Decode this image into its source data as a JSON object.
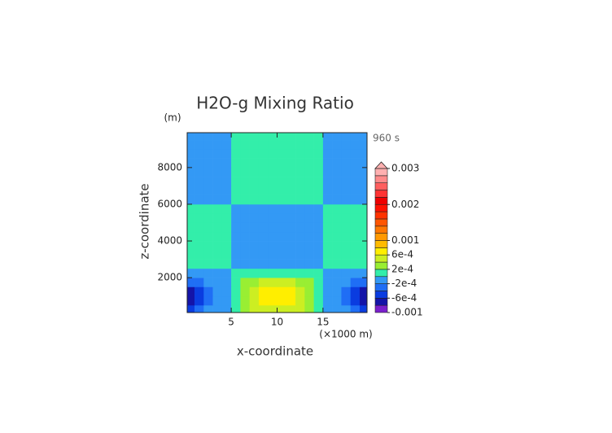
{
  "chart_data": {
    "type": "contour",
    "title": "H2O-g Mixing Ratio",
    "x_label": "x-coordinate",
    "y_label": "z-coordinate",
    "y_unit": "(m)",
    "x_unit": "(×1000 m)",
    "time_label": "960 s",
    "xlim": [
      0.2,
      19.8
    ],
    "ylim": [
      100,
      9900
    ],
    "xticks": [
      5,
      10,
      15
    ],
    "yticks": [
      2000,
      4000,
      6000,
      8000
    ],
    "x": [
      0.5,
      1.5,
      2.5,
      3.5,
      4.5,
      5.5,
      6.5,
      7.5,
      8.5,
      9.5,
      10.5,
      11.5,
      12.5,
      13.5,
      14.5,
      15.5,
      16.5,
      17.5,
      18.5,
      19.5
    ],
    "y": [
      250,
      750,
      1250,
      1750,
      2250,
      2750,
      3250,
      3750,
      4250,
      4750,
      5250,
      5750,
      6250,
      6750,
      7250,
      7750,
      8250,
      8750,
      9250,
      9750
    ],
    "values": [
      [
        -0.0005,
        -0.0003,
        -0.0001,
        -0.0001,
        -0.0001,
        0.0001,
        0.0003,
        0.0005,
        0.0005,
        0.0005,
        0.0005,
        0.0005,
        0.0005,
        0.0003,
        0.0001,
        -0.0001,
        -0.0001,
        -0.0001,
        -0.0003,
        -0.0005
      ],
      [
        -0.0007,
        -0.0005,
        -0.0003,
        -0.0001,
        -0.0001,
        0.0001,
        0.0003,
        0.0005,
        0.0007,
        0.0007,
        0.0007,
        0.0007,
        0.0005,
        0.0003,
        0.0001,
        -0.0001,
        -0.0001,
        -0.0003,
        -0.0005,
        -0.0007
      ],
      [
        -0.0007,
        -0.0005,
        -0.0003,
        -0.0001,
        -0.0001,
        0.0001,
        0.0003,
        0.0005,
        0.0007,
        0.0007,
        0.0007,
        0.0007,
        0.0005,
        0.0003,
        0.0001,
        -0.0001,
        -0.0001,
        -0.0003,
        -0.0005,
        -0.0007
      ],
      [
        -0.0003,
        -0.0003,
        -0.0001,
        -0.0001,
        -0.0001,
        0.0001,
        0.0003,
        0.0003,
        0.0005,
        0.0005,
        0.0005,
        0.0005,
        0.0003,
        0.0003,
        0.0001,
        -0.0001,
        -0.0001,
        -0.0001,
        -0.0003,
        -0.0003
      ],
      [
        -0.0001,
        -0.0001,
        -0.0001,
        -0.0001,
        -0.0001,
        0.0001,
        0.0001,
        0.0001,
        0.0001,
        0.0001,
        0.0001,
        0.0001,
        0.0001,
        0.0001,
        0.0001,
        -0.0001,
        -0.0001,
        -0.0001,
        -0.0001,
        -0.0001
      ],
      [
        0.0001,
        0.0001,
        0.0001,
        0.0001,
        0.0001,
        -0.0001,
        -0.0001,
        -0.0001,
        -0.0001,
        -0.0001,
        -0.0001,
        -0.0001,
        -0.0001,
        -0.0001,
        -0.0001,
        0.0001,
        0.0001,
        0.0001,
        0.0001,
        0.0001
      ],
      [
        0.0001,
        0.0001,
        0.0001,
        0.0001,
        0.0001,
        -0.0001,
        -0.0001,
        -0.0001,
        -0.0001,
        -0.0001,
        -0.0001,
        -0.0001,
        -0.0001,
        -0.0001,
        -0.0001,
        0.0001,
        0.0001,
        0.0001,
        0.0001,
        0.0001
      ],
      [
        0.0001,
        0.0001,
        0.0001,
        0.0001,
        0.0001,
        -0.0001,
        -0.0001,
        -0.0001,
        -0.0001,
        -0.0001,
        -0.0001,
        -0.0001,
        -0.0001,
        -0.0001,
        -0.0001,
        0.0001,
        0.0001,
        0.0001,
        0.0001,
        0.0001
      ],
      [
        0.0001,
        0.0001,
        0.0001,
        0.0001,
        0.0001,
        -0.0001,
        -0.0001,
        -0.0001,
        -0.0001,
        -0.0001,
        -0.0001,
        -0.0001,
        -0.0001,
        -0.0001,
        -0.0001,
        0.0001,
        0.0001,
        0.0001,
        0.0001,
        0.0001
      ],
      [
        0.0001,
        0.0001,
        0.0001,
        0.0001,
        0.0001,
        -0.0001,
        -0.0001,
        -0.0001,
        -0.0001,
        -0.0001,
        -0.0001,
        -0.0001,
        -0.0001,
        -0.0001,
        -0.0001,
        0.0001,
        0.0001,
        0.0001,
        0.0001,
        0.0001
      ],
      [
        0.0001,
        0.0001,
        0.0001,
        0.0001,
        0.0001,
        -0.0001,
        -0.0001,
        -0.0001,
        -0.0001,
        -0.0001,
        -0.0001,
        -0.0001,
        -0.0001,
        -0.0001,
        -0.0001,
        0.0001,
        0.0001,
        0.0001,
        0.0001,
        0.0001
      ],
      [
        0.0001,
        0.0001,
        0.0001,
        0.0001,
        0.0001,
        -0.0001,
        -0.0001,
        -0.0001,
        -0.0001,
        -0.0001,
        -0.0001,
        -0.0001,
        -0.0001,
        -0.0001,
        -0.0001,
        0.0001,
        0.0001,
        0.0001,
        0.0001,
        0.0001
      ],
      [
        -0.0001,
        -0.0001,
        -0.0001,
        -0.0001,
        -0.0001,
        0.0001,
        0.0001,
        0.0001,
        0.0001,
        0.0001,
        0.0001,
        0.0001,
        0.0001,
        0.0001,
        0.0001,
        -0.0001,
        -0.0001,
        -0.0001,
        -0.0001,
        -0.0001
      ],
      [
        -0.0001,
        -0.0001,
        -0.0001,
        -0.0001,
        -0.0001,
        0.0001,
        0.0001,
        0.0001,
        0.0001,
        0.0001,
        0.0001,
        0.0001,
        0.0001,
        0.0001,
        0.0001,
        -0.0001,
        -0.0001,
        -0.0001,
        -0.0001,
        -0.0001
      ],
      [
        -0.0001,
        -0.0001,
        -0.0001,
        -0.0001,
        -0.0001,
        0.0001,
        0.0001,
        0.0001,
        0.0001,
        0.0001,
        0.0001,
        0.0001,
        0.0001,
        0.0001,
        0.0001,
        -0.0001,
        -0.0001,
        -0.0001,
        -0.0001,
        -0.0001
      ],
      [
        -0.0001,
        -0.0001,
        -0.0001,
        -0.0001,
        -0.0001,
        0.0001,
        0.0001,
        0.0001,
        0.0001,
        0.0001,
        0.0001,
        0.0001,
        0.0001,
        0.0001,
        0.0001,
        -0.0001,
        -0.0001,
        -0.0001,
        -0.0001,
        -0.0001
      ],
      [
        -0.0001,
        -0.0001,
        -0.0001,
        -0.0001,
        -0.0001,
        0.0001,
        0.0001,
        0.0001,
        0.0001,
        0.0001,
        0.0001,
        0.0001,
        0.0001,
        0.0001,
        0.0001,
        -0.0001,
        -0.0001,
        -0.0001,
        -0.0001,
        -0.0001
      ],
      [
        -0.0001,
        -0.0001,
        -0.0001,
        -0.0001,
        -0.0001,
        0.0001,
        0.0001,
        0.0001,
        0.0001,
        0.0001,
        0.0001,
        0.0001,
        0.0001,
        0.0001,
        0.0001,
        -0.0001,
        -0.0001,
        -0.0001,
        -0.0001,
        -0.0001
      ],
      [
        -0.0001,
        -0.0001,
        -0.0001,
        -0.0001,
        -0.0001,
        0.0001,
        0.0001,
        0.0001,
        0.0001,
        0.0001,
        0.0001,
        0.0001,
        0.0001,
        0.0001,
        0.0001,
        -0.0001,
        -0.0001,
        -0.0001,
        -0.0001,
        -0.0001
      ],
      [
        -0.0001,
        -0.0001,
        -0.0001,
        -0.0001,
        -0.0001,
        0.0001,
        0.0001,
        0.0001,
        0.0001,
        0.0001,
        0.0001,
        0.0001,
        0.0001,
        0.0001,
        0.0001,
        -0.0001,
        -0.0001,
        -0.0001,
        -0.0001,
        -0.0001
      ]
    ],
    "colorbar": {
      "levels": [
        -0.001,
        -0.0008,
        -0.0006,
        -0.0004,
        -0.0002,
        0,
        0.0002,
        0.0004,
        0.0006,
        0.0008,
        0.001,
        0.0012,
        0.0014,
        0.0016,
        0.0018,
        0.002,
        0.0022,
        0.0024,
        0.0026,
        0.0028,
        0.003
      ],
      "colors": [
        "#7a1fcc",
        "#1414a8",
        "#0a3ce0",
        "#1f6ef5",
        "#3399f5",
        "#33eeaa",
        "#99ee33",
        "#ccee22",
        "#ffee00",
        "#ffbb00",
        "#ff9900",
        "#ff7700",
        "#ff5500",
        "#ff3300",
        "#ff1100",
        "#ee0000",
        "#ff3333",
        "#ff5e5e",
        "#ff8a8a",
        "#ffb0b0"
      ],
      "ticks": [
        0.003,
        0.002,
        0.001,
        {
          "value": 0.0006,
          "label": "6e-4"
        },
        {
          "value": 0.0002,
          "label": "2e-4"
        },
        {
          "value": -0.0002,
          "label": "-2e-4"
        },
        {
          "value": -0.0006,
          "label": "-6e-4"
        },
        -0.001
      ]
    }
  }
}
